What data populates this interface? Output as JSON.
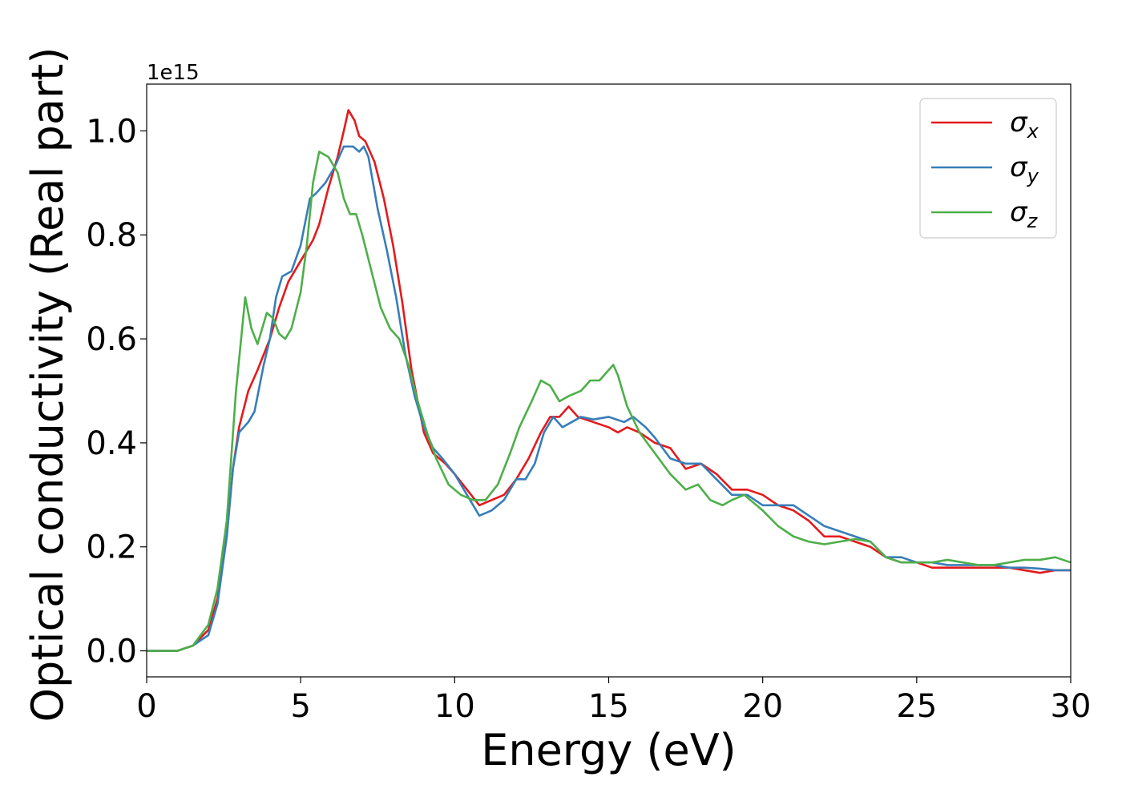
{
  "chart_data": {
    "type": "line",
    "xlabel": "Energy (eV)",
    "ylabel": "Optical conductivity (Real part)",
    "y_offset_label": "1e15",
    "y_scale": 1000000000000000.0,
    "xlim": [
      0,
      30
    ],
    "ylim": [
      -0.05,
      1.09
    ],
    "xticks": [
      0,
      5,
      10,
      15,
      20,
      25,
      30
    ],
    "xtick_labels": [
      "0",
      "5",
      "10",
      "15",
      "20",
      "25",
      "30"
    ],
    "yticks": [
      0.0,
      0.2,
      0.4,
      0.6,
      0.8,
      1.0
    ],
    "ytick_labels": [
      "0.0",
      "0.2",
      "0.4",
      "0.6",
      "0.8",
      "1.0"
    ],
    "grid": false,
    "legend_position": "top-right",
    "series": [
      {
        "name": "σx",
        "symbol": "σ",
        "subscript": "x",
        "color": "#e41a1c",
        "points": [
          [
            0,
            0.0
          ],
          [
            1.0,
            0.0
          ],
          [
            1.5,
            0.01
          ],
          [
            2.0,
            0.04
          ],
          [
            2.3,
            0.1
          ],
          [
            2.6,
            0.22
          ],
          [
            2.8,
            0.35
          ],
          [
            3.0,
            0.43
          ],
          [
            3.3,
            0.5
          ],
          [
            3.6,
            0.54
          ],
          [
            4.0,
            0.6
          ],
          [
            4.3,
            0.66
          ],
          [
            4.6,
            0.71
          ],
          [
            5.0,
            0.75
          ],
          [
            5.4,
            0.79
          ],
          [
            5.6,
            0.82
          ],
          [
            5.9,
            0.89
          ],
          [
            6.2,
            0.95
          ],
          [
            6.4,
            1.0
          ],
          [
            6.55,
            1.04
          ],
          [
            6.75,
            1.02
          ],
          [
            6.9,
            0.99
          ],
          [
            7.1,
            0.98
          ],
          [
            7.4,
            0.94
          ],
          [
            7.7,
            0.87
          ],
          [
            8.0,
            0.78
          ],
          [
            8.3,
            0.67
          ],
          [
            8.6,
            0.54
          ],
          [
            9.0,
            0.42
          ],
          [
            9.3,
            0.38
          ],
          [
            9.7,
            0.36
          ],
          [
            10.0,
            0.34
          ],
          [
            10.4,
            0.31
          ],
          [
            10.8,
            0.28
          ],
          [
            11.2,
            0.29
          ],
          [
            11.6,
            0.3
          ],
          [
            12.0,
            0.33
          ],
          [
            12.4,
            0.37
          ],
          [
            12.8,
            0.42
          ],
          [
            13.1,
            0.45
          ],
          [
            13.4,
            0.45
          ],
          [
            13.7,
            0.47
          ],
          [
            14.0,
            0.45
          ],
          [
            14.5,
            0.44
          ],
          [
            15.0,
            0.43
          ],
          [
            15.3,
            0.42
          ],
          [
            15.6,
            0.43
          ],
          [
            16.0,
            0.42
          ],
          [
            16.5,
            0.4
          ],
          [
            17.0,
            0.39
          ],
          [
            17.5,
            0.35
          ],
          [
            18.0,
            0.36
          ],
          [
            18.5,
            0.34
          ],
          [
            19.0,
            0.31
          ],
          [
            19.5,
            0.31
          ],
          [
            20.0,
            0.3
          ],
          [
            20.5,
            0.28
          ],
          [
            21.0,
            0.27
          ],
          [
            21.5,
            0.25
          ],
          [
            22.0,
            0.22
          ],
          [
            22.5,
            0.22
          ],
          [
            23.0,
            0.21
          ],
          [
            23.5,
            0.2
          ],
          [
            24.0,
            0.18
          ],
          [
            24.5,
            0.17
          ],
          [
            25.0,
            0.17
          ],
          [
            25.5,
            0.16
          ],
          [
            26.0,
            0.16
          ],
          [
            26.5,
            0.16
          ],
          [
            27.0,
            0.16
          ],
          [
            27.5,
            0.16
          ],
          [
            28.0,
            0.16
          ],
          [
            28.5,
            0.155
          ],
          [
            29.0,
            0.15
          ],
          [
            29.5,
            0.155
          ],
          [
            30.0,
            0.155
          ]
        ]
      },
      {
        "name": "σy",
        "symbol": "σ",
        "subscript": "y",
        "color": "#377eb8",
        "points": [
          [
            0,
            0.0
          ],
          [
            1.0,
            0.0
          ],
          [
            1.5,
            0.01
          ],
          [
            2.0,
            0.03
          ],
          [
            2.3,
            0.09
          ],
          [
            2.6,
            0.22
          ],
          [
            2.8,
            0.35
          ],
          [
            3.0,
            0.42
          ],
          [
            3.3,
            0.44
          ],
          [
            3.5,
            0.46
          ],
          [
            3.8,
            0.55
          ],
          [
            4.0,
            0.6
          ],
          [
            4.2,
            0.68
          ],
          [
            4.4,
            0.72
          ],
          [
            4.7,
            0.73
          ],
          [
            5.0,
            0.78
          ],
          [
            5.3,
            0.87
          ],
          [
            5.5,
            0.88
          ],
          [
            5.8,
            0.9
          ],
          [
            6.1,
            0.93
          ],
          [
            6.4,
            0.97
          ],
          [
            6.7,
            0.97
          ],
          [
            6.9,
            0.96
          ],
          [
            7.05,
            0.97
          ],
          [
            7.2,
            0.95
          ],
          [
            7.5,
            0.85
          ],
          [
            7.8,
            0.77
          ],
          [
            8.1,
            0.68
          ],
          [
            8.4,
            0.57
          ],
          [
            8.7,
            0.49
          ],
          [
            9.0,
            0.43
          ],
          [
            9.3,
            0.39
          ],
          [
            9.6,
            0.37
          ],
          [
            10.0,
            0.34
          ],
          [
            10.4,
            0.3
          ],
          [
            10.8,
            0.26
          ],
          [
            11.2,
            0.27
          ],
          [
            11.6,
            0.29
          ],
          [
            12.0,
            0.33
          ],
          [
            12.3,
            0.33
          ],
          [
            12.6,
            0.36
          ],
          [
            12.9,
            0.42
          ],
          [
            13.2,
            0.45
          ],
          [
            13.5,
            0.43
          ],
          [
            13.8,
            0.44
          ],
          [
            14.1,
            0.45
          ],
          [
            14.5,
            0.445
          ],
          [
            15.0,
            0.45
          ],
          [
            15.5,
            0.44
          ],
          [
            15.8,
            0.45
          ],
          [
            16.2,
            0.43
          ],
          [
            16.5,
            0.41
          ],
          [
            17.0,
            0.37
          ],
          [
            17.5,
            0.36
          ],
          [
            18.0,
            0.36
          ],
          [
            18.5,
            0.33
          ],
          [
            19.0,
            0.3
          ],
          [
            19.5,
            0.3
          ],
          [
            20.0,
            0.28
          ],
          [
            20.5,
            0.28
          ],
          [
            21.0,
            0.28
          ],
          [
            21.5,
            0.26
          ],
          [
            22.0,
            0.24
          ],
          [
            22.5,
            0.23
          ],
          [
            23.0,
            0.22
          ],
          [
            23.5,
            0.21
          ],
          [
            24.0,
            0.18
          ],
          [
            24.5,
            0.18
          ],
          [
            25.0,
            0.17
          ],
          [
            25.5,
            0.17
          ],
          [
            26.0,
            0.165
          ],
          [
            26.5,
            0.165
          ],
          [
            27.0,
            0.165
          ],
          [
            27.5,
            0.165
          ],
          [
            28.0,
            0.16
          ],
          [
            28.5,
            0.16
          ],
          [
            29.0,
            0.158
          ],
          [
            29.5,
            0.155
          ],
          [
            30.0,
            0.155
          ]
        ]
      },
      {
        "name": "σz",
        "symbol": "σ",
        "subscript": "z",
        "color": "#4daf4a",
        "points": [
          [
            0,
            0.0
          ],
          [
            1.0,
            0.0
          ],
          [
            1.5,
            0.01
          ],
          [
            2.0,
            0.05
          ],
          [
            2.3,
            0.12
          ],
          [
            2.6,
            0.25
          ],
          [
            2.9,
            0.5
          ],
          [
            3.2,
            0.68
          ],
          [
            3.4,
            0.62
          ],
          [
            3.6,
            0.59
          ],
          [
            3.9,
            0.65
          ],
          [
            4.1,
            0.64
          ],
          [
            4.3,
            0.61
          ],
          [
            4.5,
            0.6
          ],
          [
            4.7,
            0.62
          ],
          [
            5.0,
            0.69
          ],
          [
            5.2,
            0.78
          ],
          [
            5.4,
            0.9
          ],
          [
            5.6,
            0.96
          ],
          [
            5.9,
            0.95
          ],
          [
            6.2,
            0.92
          ],
          [
            6.4,
            0.87
          ],
          [
            6.6,
            0.84
          ],
          [
            6.8,
            0.84
          ],
          [
            7.0,
            0.8
          ],
          [
            7.3,
            0.73
          ],
          [
            7.6,
            0.66
          ],
          [
            7.9,
            0.62
          ],
          [
            8.2,
            0.6
          ],
          [
            8.5,
            0.55
          ],
          [
            8.8,
            0.48
          ],
          [
            9.1,
            0.42
          ],
          [
            9.4,
            0.37
          ],
          [
            9.8,
            0.32
          ],
          [
            10.2,
            0.3
          ],
          [
            10.6,
            0.29
          ],
          [
            11.0,
            0.29
          ],
          [
            11.4,
            0.32
          ],
          [
            11.8,
            0.38
          ],
          [
            12.1,
            0.43
          ],
          [
            12.5,
            0.48
          ],
          [
            12.8,
            0.52
          ],
          [
            13.1,
            0.51
          ],
          [
            13.4,
            0.48
          ],
          [
            13.7,
            0.49
          ],
          [
            14.1,
            0.5
          ],
          [
            14.4,
            0.52
          ],
          [
            14.7,
            0.52
          ],
          [
            15.0,
            0.54
          ],
          [
            15.15,
            0.55
          ],
          [
            15.3,
            0.53
          ],
          [
            15.6,
            0.47
          ],
          [
            16.0,
            0.42
          ],
          [
            16.5,
            0.38
          ],
          [
            17.0,
            0.34
          ],
          [
            17.5,
            0.31
          ],
          [
            17.9,
            0.32
          ],
          [
            18.3,
            0.29
          ],
          [
            18.7,
            0.28
          ],
          [
            19.0,
            0.29
          ],
          [
            19.4,
            0.3
          ],
          [
            20.0,
            0.27
          ],
          [
            20.5,
            0.24
          ],
          [
            21.0,
            0.22
          ],
          [
            21.5,
            0.21
          ],
          [
            22.0,
            0.205
          ],
          [
            22.5,
            0.21
          ],
          [
            23.0,
            0.215
          ],
          [
            23.5,
            0.21
          ],
          [
            24.0,
            0.18
          ],
          [
            24.5,
            0.17
          ],
          [
            25.0,
            0.17
          ],
          [
            25.5,
            0.17
          ],
          [
            26.0,
            0.175
          ],
          [
            26.5,
            0.17
          ],
          [
            27.0,
            0.165
          ],
          [
            27.5,
            0.165
          ],
          [
            28.0,
            0.17
          ],
          [
            28.5,
            0.175
          ],
          [
            29.0,
            0.175
          ],
          [
            29.5,
            0.18
          ],
          [
            30.0,
            0.17
          ]
        ]
      }
    ]
  }
}
